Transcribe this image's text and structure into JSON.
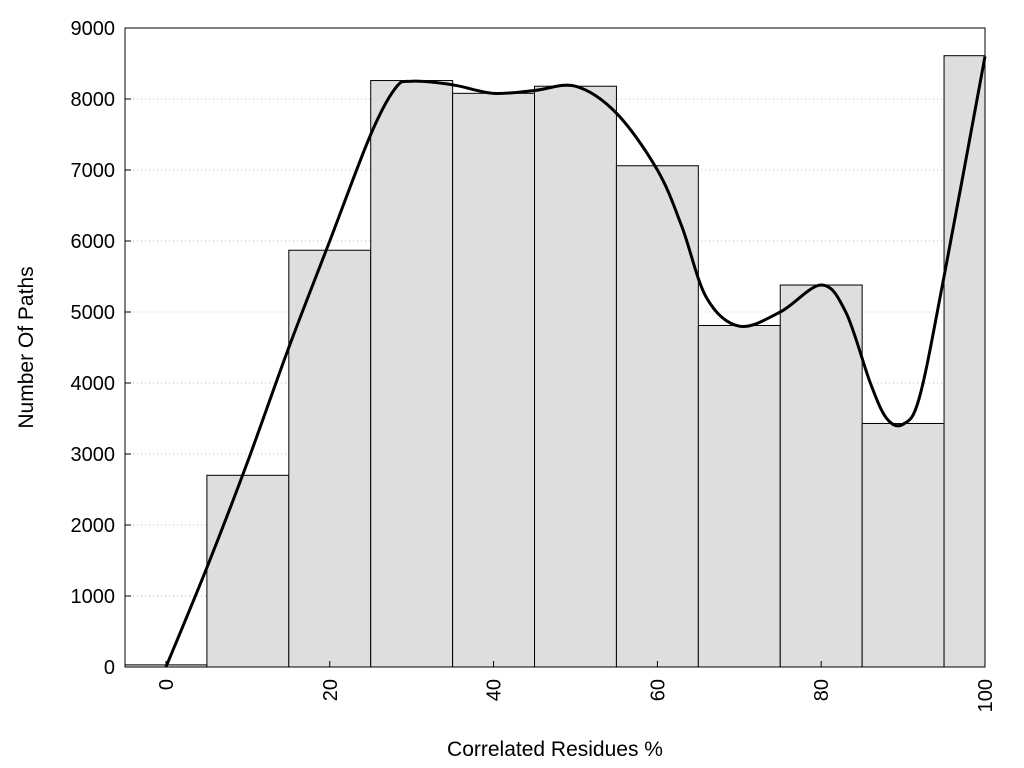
{
  "chart_data": {
    "type": "bar",
    "title": "",
    "xlabel": "Correlated Residues %",
    "ylabel": "Number Of Paths",
    "xlim": [
      -5,
      100
    ],
    "ylim": [
      0,
      9000
    ],
    "grid": "horizontal-dotted",
    "bar_width": 10,
    "x": [
      0,
      10,
      20,
      30,
      40,
      50,
      60,
      70,
      80,
      90,
      100
    ],
    "values": [
      30,
      2700,
      5870,
      8260,
      8080,
      8180,
      7060,
      4810,
      5380,
      3430,
      8610
    ],
    "x_ticks": [
      0,
      20,
      40,
      60,
      80,
      100
    ],
    "y_ticks": [
      0,
      1000,
      2000,
      3000,
      4000,
      5000,
      6000,
      7000,
      8000,
      9000
    ],
    "x_tick_labels": [
      "0",
      "20",
      "40",
      "60",
      "80",
      "100"
    ],
    "y_tick_labels": [
      "0",
      "1000",
      "2000",
      "3000",
      "4000",
      "5000",
      "6000",
      "7000",
      "8000",
      "9000"
    ],
    "curve": {
      "x": [
        0,
        5,
        10,
        15,
        20,
        25,
        28,
        30,
        35,
        40,
        45,
        50,
        55,
        60,
        63,
        66,
        70,
        75,
        80,
        83,
        86,
        88,
        90,
        92,
        95,
        100
      ],
      "y": [
        0,
        1400,
        2900,
        4500,
        6000,
        7500,
        8150,
        8250,
        8200,
        8080,
        8120,
        8180,
        7800,
        7000,
        6200,
        5200,
        4800,
        5000,
        5380,
        5000,
        4000,
        3500,
        3420,
        3800,
        5500,
        8600
      ]
    },
    "colors": {
      "bar_fill": "#dedede",
      "bar_stroke": "#000000",
      "curve": "#000000",
      "grid": "#bdbdbd",
      "axis": "#000000"
    }
  }
}
